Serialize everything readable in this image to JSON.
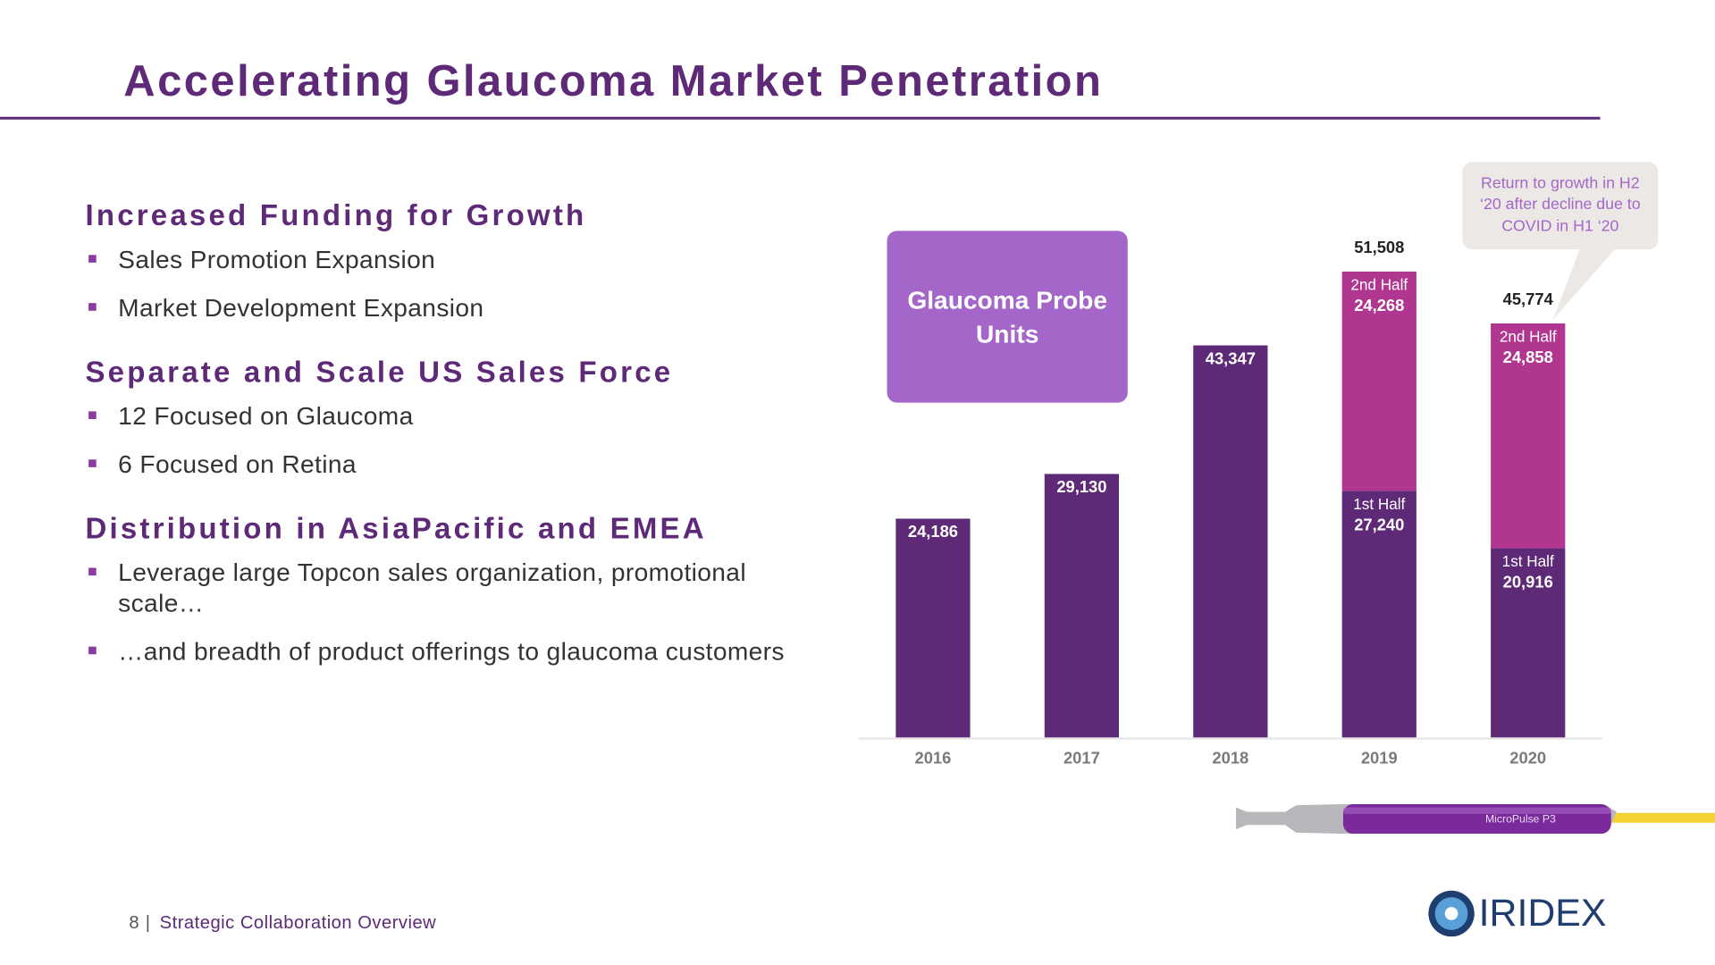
{
  "slide": {
    "title": "Accelerating Glaucoma Market Penetration",
    "sections": [
      {
        "heading": "Increased Funding for Growth",
        "bullets": [
          "Sales Promotion Expansion",
          "Market Development Expansion"
        ]
      },
      {
        "heading": "Separate and Scale US Sales Force",
        "bullets": [
          "12 Focused on Glaucoma",
          "6 Focused on Retina"
        ]
      },
      {
        "heading": "Distribution in AsiaPacific and EMEA",
        "bullets": [
          "Leverage large Topcon sales organization, promotional scale…",
          "…and breadth of product offerings to glaucoma customers"
        ]
      }
    ],
    "footer": {
      "page": "8",
      "separator": "|",
      "text": "Strategic Collaboration Overview"
    },
    "logo": "IRIDEX",
    "product_label": "MicroPulse P3"
  },
  "chart_data": {
    "type": "bar",
    "stacked": true,
    "annotation": "Glaucoma Probe Units",
    "callout": "Return to growth in H2 ‘20 after decline due to COVID in H1 ‘20",
    "categories": [
      "2016",
      "2017",
      "2018",
      "2019",
      "2020"
    ],
    "series": [
      {
        "color": "#5e2a78",
        "values": [
          24186,
          29130,
          43347,
          null,
          null
        ],
        "value_labels": [
          "24,186",
          "29,130",
          "43,347",
          null,
          null
        ]
      },
      {
        "name": "1st Half",
        "color": "#5e2a78",
        "values": [
          null,
          null,
          null,
          27240,
          20916
        ],
        "value_labels": [
          null,
          null,
          null,
          "27,240",
          "20,916"
        ]
      },
      {
        "name": "2nd Half",
        "color": "#b0368f",
        "values": [
          null,
          null,
          null,
          24268,
          24858
        ],
        "value_labels": [
          null,
          null,
          null,
          "24,268",
          "24,858"
        ]
      }
    ],
    "totals": [
      null,
      null,
      null,
      51508,
      45774
    ],
    "total_labels": [
      null,
      null,
      null,
      "51,508",
      "45,774"
    ],
    "ylim": [
      0,
      60000
    ]
  }
}
